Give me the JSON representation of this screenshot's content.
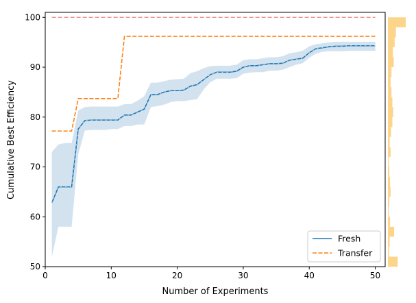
{
  "chart_data": {
    "type": "line",
    "xlabel": "Number of Experiments",
    "ylabel": "Cumulative Best Efficiency",
    "xlim": [
      0,
      51.5
    ],
    "ylim": [
      50,
      101
    ],
    "xticks": [
      0,
      10,
      20,
      30,
      40,
      50
    ],
    "yticks": [
      50,
      60,
      70,
      80,
      90,
      100
    ],
    "grid": false,
    "legend_position": "lower-right",
    "reference_line": {
      "y": 100,
      "color": "#f08080",
      "style": "dashed"
    },
    "x": [
      1,
      2,
      3,
      4,
      5,
      6,
      7,
      8,
      9,
      10,
      11,
      12,
      13,
      14,
      15,
      16,
      17,
      18,
      19,
      20,
      21,
      22,
      23,
      24,
      25,
      26,
      27,
      28,
      29,
      30,
      31,
      32,
      33,
      34,
      35,
      36,
      37,
      38,
      39,
      40,
      41,
      42,
      43,
      44,
      45,
      46,
      47,
      48,
      49,
      50
    ],
    "series": [
      {
        "name": "Fresh",
        "color": "#1f77b4",
        "style": "solid",
        "values": [
          62.8,
          66.0,
          66.0,
          66.0,
          77.6,
          79.3,
          79.4,
          79.4,
          79.4,
          79.4,
          79.4,
          80.4,
          80.4,
          81.0,
          81.6,
          84.5,
          84.5,
          85.0,
          85.3,
          85.3,
          85.4,
          86.2,
          86.5,
          87.5,
          88.5,
          89.0,
          89.0,
          89.0,
          89.2,
          90.0,
          90.3,
          90.3,
          90.5,
          90.7,
          90.7,
          90.8,
          91.4,
          91.6,
          91.8,
          92.9,
          93.7,
          93.9,
          94.1,
          94.2,
          94.2,
          94.3,
          94.3,
          94.3,
          94.3,
          94.3
        ],
        "ci_lower": [
          52.0,
          58.0,
          58.0,
          58.0,
          72.5,
          77.3,
          77.4,
          77.4,
          77.4,
          77.6,
          77.6,
          78.2,
          78.2,
          78.5,
          78.5,
          82.0,
          82.2,
          82.5,
          83.0,
          83.2,
          83.2,
          83.4,
          83.6,
          85.5,
          87.0,
          87.7,
          87.7,
          87.7,
          87.8,
          88.7,
          88.9,
          89.0,
          89.0,
          89.3,
          89.3,
          89.5,
          90.0,
          90.5,
          90.8,
          91.9,
          92.7,
          93.1,
          93.2,
          93.2,
          93.2,
          93.3,
          93.3,
          93.3,
          93.3,
          93.3
        ],
        "ci_upper": [
          73.0,
          74.5,
          74.8,
          74.8,
          81.3,
          82.0,
          82.1,
          82.1,
          82.1,
          82.1,
          82.1,
          82.6,
          82.6,
          83.3,
          84.2,
          86.9,
          86.9,
          87.2,
          87.5,
          87.6,
          87.7,
          88.8,
          89.2,
          89.8,
          90.2,
          90.3,
          90.3,
          90.3,
          90.5,
          91.4,
          91.6,
          91.6,
          91.8,
          92.0,
          92.0,
          92.2,
          92.8,
          93.0,
          93.3,
          94.2,
          94.6,
          94.8,
          95.0,
          95.1,
          95.1,
          95.1,
          95.1,
          95.1,
          95.1,
          95.1
        ],
        "ci_color": "#aecbe2"
      },
      {
        "name": "Transfer",
        "color": "#ff7f0e",
        "style": "dashed",
        "values": [
          77.2,
          77.2,
          77.2,
          77.2,
          83.7,
          83.7,
          83.7,
          83.7,
          83.7,
          83.7,
          83.7,
          96.2,
          96.2,
          96.2,
          96.2,
          96.2,
          96.2,
          96.2,
          96.2,
          96.2,
          96.2,
          96.2,
          96.2,
          96.2,
          96.2,
          96.2,
          96.2,
          96.2,
          96.2,
          96.2,
          96.2,
          96.2,
          96.2,
          96.2,
          96.2,
          96.2,
          96.2,
          96.2,
          96.2,
          96.2,
          96.2,
          96.2,
          96.2,
          96.2,
          96.2,
          96.2,
          96.2,
          96.2,
          96.2,
          96.2
        ]
      }
    ],
    "marginal_histogram": {
      "color": "#fdd58a",
      "bins": [
        {
          "y0": 98,
          "y1": 100,
          "count": 1.0
        },
        {
          "y0": 96,
          "y1": 98,
          "count": 0.45
        },
        {
          "y0": 94,
          "y1": 96,
          "count": 0.38
        },
        {
          "y0": 92,
          "y1": 94,
          "count": 0.28
        },
        {
          "y0": 90,
          "y1": 92,
          "count": 0.33
        },
        {
          "y0": 88,
          "y1": 90,
          "count": 0.2
        },
        {
          "y0": 86,
          "y1": 88,
          "count": 0.15
        },
        {
          "y0": 84,
          "y1": 86,
          "count": 0.2
        },
        {
          "y0": 82,
          "y1": 84,
          "count": 0.25
        },
        {
          "y0": 80,
          "y1": 82,
          "count": 0.3
        },
        {
          "y0": 78,
          "y1": 80,
          "count": 0.25
        },
        {
          "y0": 76,
          "y1": 78,
          "count": 0.18
        },
        {
          "y0": 74,
          "y1": 76,
          "count": 0.1
        },
        {
          "y0": 72,
          "y1": 74,
          "count": 0.15
        },
        {
          "y0": 70,
          "y1": 72,
          "count": 0.05
        },
        {
          "y0": 68,
          "y1": 70,
          "count": 0.08
        },
        {
          "y0": 66,
          "y1": 68,
          "count": 0.12
        },
        {
          "y0": 64,
          "y1": 66,
          "count": 0.15
        },
        {
          "y0": 62,
          "y1": 64,
          "count": 0.08
        },
        {
          "y0": 60,
          "y1": 62,
          "count": 0.05
        },
        {
          "y0": 58,
          "y1": 60,
          "count": 0.12
        },
        {
          "y0": 56,
          "y1": 58,
          "count": 0.35
        },
        {
          "y0": 54,
          "y1": 56,
          "count": 0.1
        },
        {
          "y0": 52,
          "y1": 54,
          "count": 0.06
        },
        {
          "y0": 50,
          "y1": 52,
          "count": 0.55
        }
      ]
    }
  }
}
